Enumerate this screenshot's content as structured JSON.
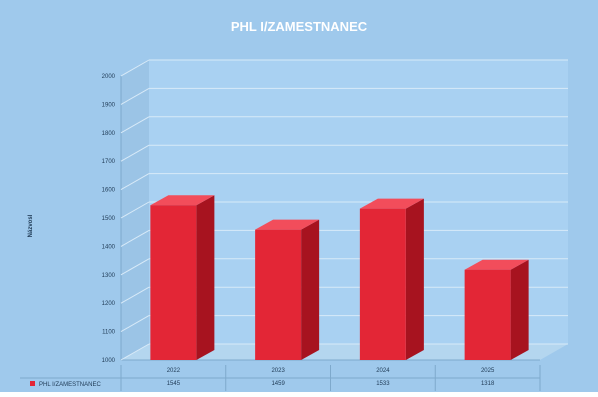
{
  "chart_data": {
    "type": "bar",
    "title": "PHL I/ZAMESTNANEC",
    "ylabel": "Názvosl",
    "xlabel": "",
    "categories": [
      "2022",
      "2023",
      "2024",
      "2025"
    ],
    "series": [
      {
        "name": "PHL I/ZAMESTNANEC",
        "values": [
          1545,
          1459,
          1533,
          1318
        ]
      }
    ],
    "value_labels": [
      "1545",
      "1459",
      "1533",
      "1318"
    ],
    "ylim": [
      1000,
      2000
    ],
    "yticks": [
      1000,
      1100,
      1200,
      1300,
      1400,
      1500,
      1600,
      1700,
      1800,
      1900,
      2000
    ],
    "ytick_labels": [
      "1000",
      "1100",
      "1200",
      "1300",
      "1400",
      "1500",
      "1600",
      "1700",
      "1800",
      "1900",
      "2000"
    ],
    "grid": true,
    "legend": "bottom-left data table",
    "colors": {
      "background": "#9fc9ec",
      "plot_back": "#a9d1f2",
      "plot_floor": "#b4d6ef",
      "bar_front": "#e32636",
      "bar_side": "#a7131f",
      "bar_top": "#f24d5b",
      "title": "#ffffff"
    }
  }
}
